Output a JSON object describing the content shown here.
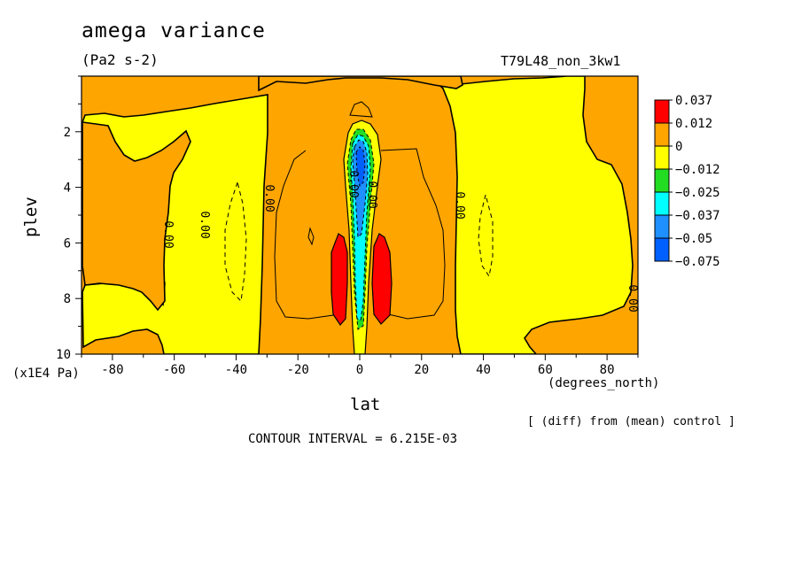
{
  "figure": {
    "title": "amega variance",
    "units": "(Pa2 s-2)",
    "run_label": "T79L48_non_3kw1",
    "x_unit": "(degrees_north)",
    "y_unit": "(x1E4 Pa)",
    "x_axis_label": "lat",
    "y_axis_label": "plev",
    "diff_note": "[ (diff) from (mean) control ]",
    "contour_interval": "CONTOUR INTERVAL = 6.215E-03"
  },
  "chart_data": {
    "type": "heatmap",
    "title": "amega variance",
    "xlabel": "lat",
    "ylabel": "plev",
    "xlim": [
      -90,
      90
    ],
    "ylim": [
      10,
      0
    ],
    "x_ticks": [
      -80,
      -60,
      -40,
      -20,
      0,
      20,
      40,
      60,
      80
    ],
    "y_ticks": [
      2,
      4,
      6,
      8,
      10
    ],
    "colorbar": {
      "levels": [
        "0.037",
        "0.012",
        "0",
        "-0.012",
        "-0.025",
        "-0.037",
        "-0.05",
        "-0.075"
      ],
      "colors": [
        "#ff0000",
        "#ffa500",
        "#ffff00",
        "#22dd22",
        "#00ffff",
        "#1e90ff",
        "#0060ff"
      ]
    },
    "contour_labels": [
      "0.00",
      "0.00",
      "0.00",
      "0.00",
      "0.00",
      "0.00",
      "0.00"
    ],
    "contour_interval": 0.006215,
    "regions": [
      {
        "fill": "orange",
        "lat": [
          -90,
          -74
        ],
        "plev": [
          0,
          10
        ]
      },
      {
        "fill": "orange",
        "lat": [
          -32,
          32
        ],
        "plev": [
          0,
          10
        ]
      },
      {
        "fill": "orange",
        "lat": [
          69,
          90
        ],
        "plev": [
          0,
          10
        ]
      },
      {
        "fill": "yellow",
        "lat": [
          -68,
          -32
        ],
        "plev": [
          0,
          10
        ]
      },
      {
        "fill": "yellow",
        "lat": [
          32,
          70
        ],
        "plev": [
          0,
          10
        ]
      },
      {
        "fill": "red",
        "lat": [
          -8,
          -3
        ],
        "plev": [
          5.8,
          9
        ]
      },
      {
        "fill": "red",
        "lat": [
          3,
          9
        ],
        "plev": [
          5.8,
          9
        ]
      },
      {
        "fill": "blue",
        "lat": [
          -2,
          3
        ],
        "plev": [
          1.8,
          8.5
        ]
      }
    ]
  }
}
